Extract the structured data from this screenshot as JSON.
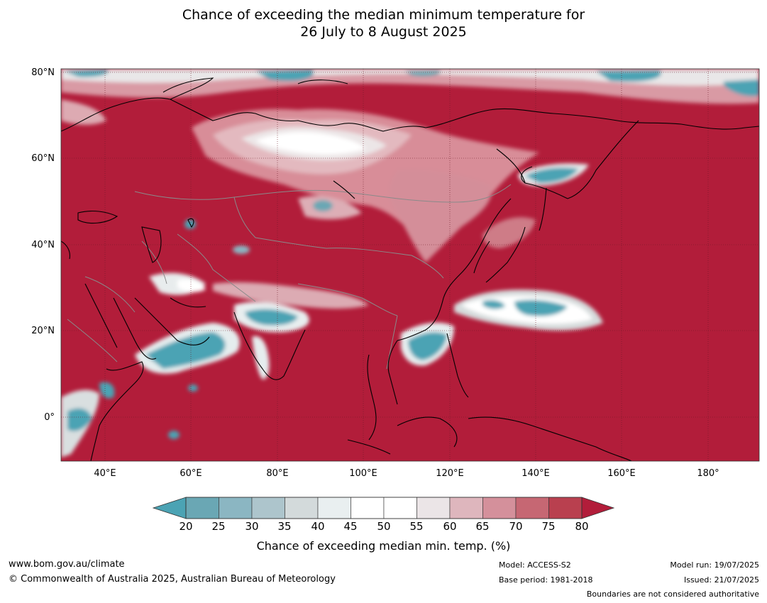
{
  "title": {
    "line1": "Chance of exceeding the median minimum temperature for",
    "line2": "26 July to 8 August 2025"
  },
  "map": {
    "region": "Asia",
    "lat_labels": [
      "80°N",
      "60°N",
      "40°N",
      "20°N",
      "0°"
    ],
    "lon_labels": [
      "40°E",
      "60°E",
      "80°E",
      "100°E",
      "120°E",
      "140°E",
      "160°E",
      "180°"
    ],
    "colors": {
      "ocean_dominant": "#B21D3A",
      "coastline": "#000000",
      "borders": "#8a8a8a",
      "gridline": "#6b1a25"
    }
  },
  "colorbar": {
    "ticks": [
      "20",
      "25",
      "30",
      "35",
      "40",
      "45",
      "50",
      "55",
      "60",
      "65",
      "70",
      "75",
      "80"
    ],
    "colors": [
      "#4BA3B4",
      "#6AA7B4",
      "#8BB6C2",
      "#ADC5CC",
      "#D3DADB",
      "#E9EFF0",
      "#FFFFFF",
      "#FFFFFF",
      "#EBE5E7",
      "#DEB6BD",
      "#D4909B",
      "#C66773",
      "#B9404F",
      "#B21D3A"
    ],
    "label": "Chance of exceeding median min. temp. (%)"
  },
  "footer": {
    "website": "www.bom.gov.au/climate",
    "copyright": "© Commonwealth of Australia 2025, Australian Bureau of Meteorology",
    "model": "Model: ACCESS-S2",
    "base_period": "Base period: 1981-2018",
    "model_run": "Model run: 19/07/2025",
    "issued": "Issued: 21/07/2025",
    "disclaimer": "Boundaries are not considered authoritative"
  }
}
